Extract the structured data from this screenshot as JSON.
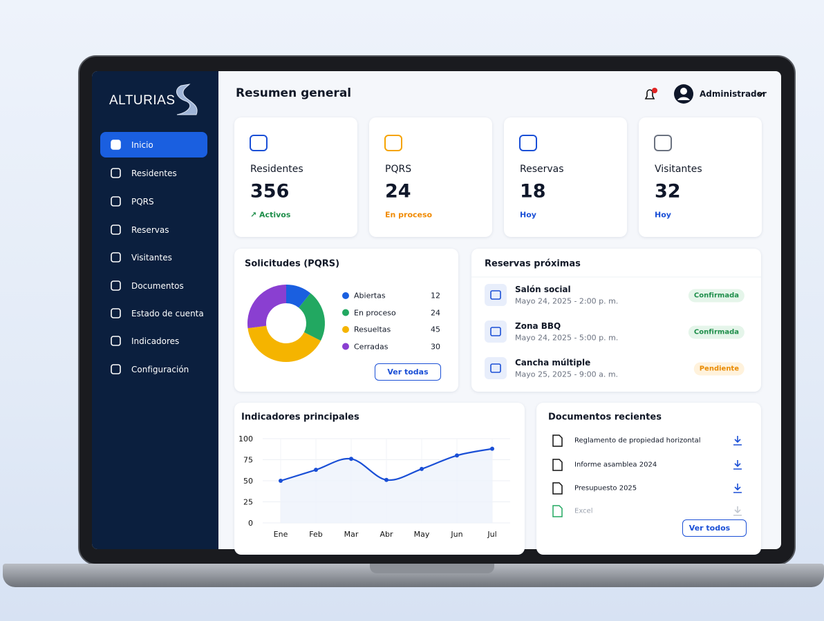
{
  "brand": "ALTURIAS",
  "sidebar": {
    "items": [
      "Inicio",
      "Residentes",
      "PQRS",
      "Reservas",
      "Visitantes",
      "Documentos",
      "Estado de cuenta",
      "Indicadores",
      "Configuración"
    ],
    "active": 0
  },
  "header": {
    "title": "Resumen general",
    "user": "Administrador"
  },
  "stats": [
    {
      "label": "Residentes",
      "value": "356",
      "note": "↗ Activos",
      "color": "#1e8e4a",
      "icon_color": "#1a4fd6"
    },
    {
      "label": "PQRS",
      "value": "24",
      "note": "En proceso",
      "color": "#f08a00",
      "icon_color": "#f5a300"
    },
    {
      "label": "Reservas",
      "value": "18",
      "note": "Hoy",
      "color": "#1a4fd6",
      "icon_color": "#1a4fd6"
    },
    {
      "label": "Visitantes",
      "value": "32",
      "note": "Hoy",
      "color": "#1a4fd6",
      "icon_color": "#6b7280"
    }
  ],
  "pqrs_button": "Ver todas",
  "reservations": {
    "title": "Reservas próximas",
    "items": [
      {
        "name": "Salón social",
        "date": "Mayo 24, 2025 - 2:00 p. m.",
        "status": "Confirmada",
        "status_color": "#1e8e4a",
        "status_bg": "#e5f5ea"
      },
      {
        "name": "Zona BBQ",
        "date": "Mayo 24, 2025 - 5:00 p. m.",
        "status": "Confirmada",
        "status_color": "#1e8e4a",
        "status_bg": "#e5f5ea"
      },
      {
        "name": "Cancha múltiple",
        "date": "Mayo 25, 2025 - 9:00 a. m.",
        "status": "Pendiente",
        "status_color": "#e98a00",
        "status_bg": "#fff2dc"
      }
    ]
  },
  "documents": {
    "title": "Documentos recientes",
    "items": [
      "Reglamento de propiedad horizontal",
      "Informe asamblea 2024",
      "Presupuesto 2025",
      "Excel"
    ],
    "button": "Ver todos"
  },
  "chart_data": [
    {
      "type": "pie",
      "title": "Solicitudes (PQRS)",
      "categories": [
        "Abiertas",
        "En proceso",
        "Resueltas",
        "Cerradas"
      ],
      "values": [
        12,
        24,
        45,
        30
      ],
      "colors": [
        "#1a5fe0",
        "#22a861",
        "#f5b400",
        "#8a3fd1"
      ]
    },
    {
      "type": "line",
      "title": "Indicadores principales",
      "categories": [
        "Ene",
        "Feb",
        "Mar",
        "Abr",
        "May",
        "Jun",
        "Jul"
      ],
      "values": [
        50,
        63,
        76,
        51,
        64,
        80,
        88
      ],
      "color": "#1a4fd6",
      "ylim": [
        0,
        100
      ],
      "yticks": [
        0,
        25,
        50,
        75,
        100
      ],
      "grid": true
    }
  ]
}
